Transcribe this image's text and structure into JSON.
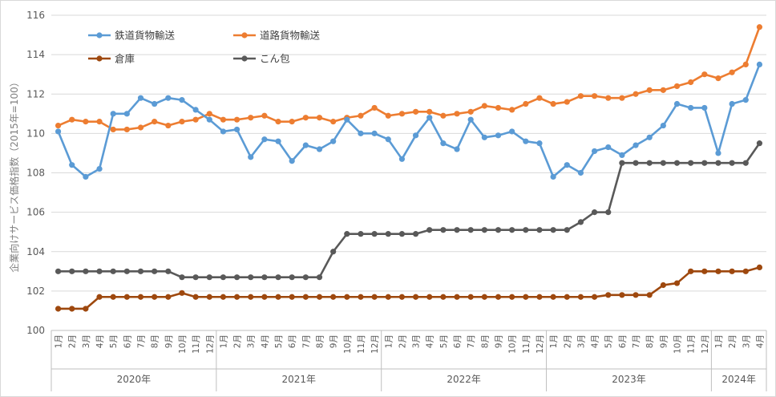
{
  "chart_data": {
    "type": "line",
    "ylabel": "企業向けサービス価格指数（2015年=100）",
    "ylim": [
      100,
      116
    ],
    "yticks": [
      100,
      102,
      104,
      106,
      108,
      110,
      112,
      114,
      116
    ],
    "grid": "horizontal",
    "legend_position": "top-left",
    "month_labels": [
      "1月",
      "2月",
      "3月",
      "4月",
      "5月",
      "6月",
      "7月",
      "8月",
      "9月",
      "10月",
      "11月",
      "12月",
      "1月",
      "2月",
      "3月",
      "4月",
      "5月",
      "6月",
      "7月",
      "8月",
      "9月",
      "10月",
      "11月",
      "12月",
      "1月",
      "2月",
      "3月",
      "4月",
      "5月",
      "6月",
      "7月",
      "8月",
      "9月",
      "10月",
      "11月",
      "12月",
      "1月",
      "2月",
      "3月",
      "4月",
      "5月",
      "6月",
      "7月",
      "8月",
      "9月",
      "10月",
      "11月",
      "12月",
      "1月",
      "2月",
      "3月",
      "4月"
    ],
    "years": [
      {
        "label": "2020年",
        "months": 12
      },
      {
        "label": "2021年",
        "months": 12
      },
      {
        "label": "2022年",
        "months": 12
      },
      {
        "label": "2023年",
        "months": 12
      },
      {
        "label": "2024年",
        "months": 4
      }
    ],
    "series": [
      {
        "name": "鉄道貨物輸送",
        "color": "#5b9bd5",
        "values": [
          110.1,
          108.4,
          107.8,
          108.2,
          111.0,
          111.0,
          111.8,
          111.5,
          111.8,
          111.7,
          111.2,
          110.7,
          110.1,
          110.2,
          108.8,
          109.7,
          109.6,
          108.6,
          109.4,
          109.2,
          109.6,
          110.7,
          110.0,
          110.0,
          109.7,
          108.7,
          109.9,
          110.8,
          109.5,
          109.2,
          110.7,
          109.8,
          109.9,
          110.1,
          109.6,
          109.5,
          107.8,
          108.4,
          108.0,
          109.1,
          109.3,
          108.9,
          109.4,
          109.8,
          110.4,
          111.5,
          111.3,
          111.3,
          109.0,
          111.5,
          111.7,
          113.5
        ]
      },
      {
        "name": "道路貨物輸送",
        "color": "#ed7d31",
        "values": [
          110.4,
          110.7,
          110.6,
          110.6,
          110.2,
          110.2,
          110.3,
          110.6,
          110.4,
          110.6,
          110.7,
          111.0,
          110.7,
          110.7,
          110.8,
          110.9,
          110.6,
          110.6,
          110.8,
          110.8,
          110.6,
          110.8,
          110.9,
          111.3,
          110.9,
          111.0,
          111.1,
          111.1,
          110.9,
          111.0,
          111.1,
          111.4,
          111.3,
          111.2,
          111.5,
          111.8,
          111.5,
          111.6,
          111.9,
          111.9,
          111.8,
          111.8,
          112.0,
          112.2,
          112.2,
          112.4,
          112.6,
          113.0,
          112.8,
          113.1,
          113.5,
          115.4
        ]
      },
      {
        "name": "倉庫",
        "color": "#9e480e",
        "values": [
          101.1,
          101.1,
          101.1,
          101.7,
          101.7,
          101.7,
          101.7,
          101.7,
          101.7,
          101.9,
          101.7,
          101.7,
          101.7,
          101.7,
          101.7,
          101.7,
          101.7,
          101.7,
          101.7,
          101.7,
          101.7,
          101.7,
          101.7,
          101.7,
          101.7,
          101.7,
          101.7,
          101.7,
          101.7,
          101.7,
          101.7,
          101.7,
          101.7,
          101.7,
          101.7,
          101.7,
          101.7,
          101.7,
          101.7,
          101.7,
          101.8,
          101.8,
          101.8,
          101.8,
          102.3,
          102.4,
          103.0,
          103.0,
          103.0,
          103.0,
          103.0,
          103.2
        ]
      },
      {
        "name": "こん包",
        "color": "#595959",
        "values": [
          103.0,
          103.0,
          103.0,
          103.0,
          103.0,
          103.0,
          103.0,
          103.0,
          103.0,
          102.7,
          102.7,
          102.7,
          102.7,
          102.7,
          102.7,
          102.7,
          102.7,
          102.7,
          102.7,
          102.7,
          104.0,
          104.9,
          104.9,
          104.9,
          104.9,
          104.9,
          104.9,
          105.1,
          105.1,
          105.1,
          105.1,
          105.1,
          105.1,
          105.1,
          105.1,
          105.1,
          105.1,
          105.1,
          105.5,
          106.0,
          106.0,
          108.5,
          108.5,
          108.5,
          108.5,
          108.5,
          108.5,
          108.5,
          108.5,
          108.5,
          108.5,
          109.5
        ]
      }
    ]
  }
}
